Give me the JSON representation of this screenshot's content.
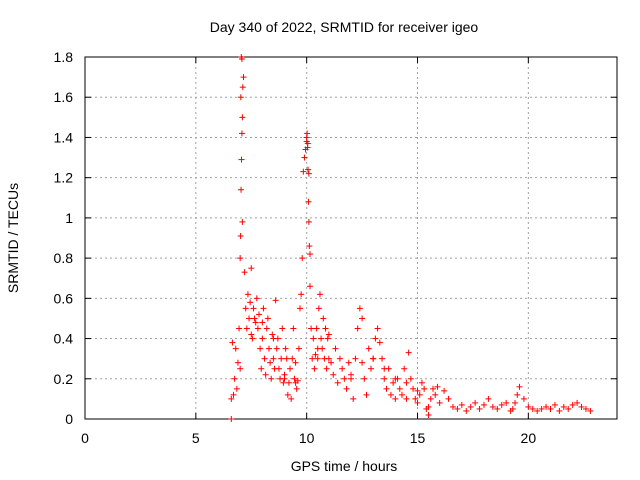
{
  "chart_data": {
    "type": "scatter",
    "title": "Day 340 of 2022, SRMTID for receiver igeo",
    "xlabel": "GPS time / hours",
    "ylabel": "SRMTID / TECUs",
    "xlim": [
      0,
      24
    ],
    "ylim": [
      0,
      1.8
    ],
    "xticks": [
      0,
      5,
      10,
      15,
      20
    ],
    "yticks": [
      0,
      0.2,
      0.4,
      0.6,
      0.8,
      1,
      1.2,
      1.4,
      1.6,
      1.8
    ],
    "xtick_labels": [
      "0",
      "5",
      "10",
      "15",
      "20"
    ],
    "ytick_labels": [
      "0",
      "0.2",
      "0.4",
      "0.6",
      "0.8",
      "1",
      "1.2",
      "1.4",
      "1.6",
      "1.8"
    ],
    "grid": true,
    "marker": "+",
    "marker_color": "#ff0000",
    "series": [
      {
        "name": "SRMTID",
        "x": [
          6.6,
          6.65,
          6.7,
          6.75,
          6.8,
          6.85,
          6.9,
          6.95,
          7.0,
          7.02,
          7.04,
          7.06,
          7.08,
          7.1,
          7.12,
          7.15,
          7.2,
          7.25,
          7.3,
          7.35,
          7.4,
          7.45,
          7.5,
          7.55,
          7.6,
          7.65,
          7.7,
          7.75,
          7.8,
          7.85,
          7.9,
          7.95,
          8.0,
          8.05,
          8.1,
          8.15,
          8.2,
          8.25,
          8.3,
          8.35,
          8.4,
          8.45,
          8.5,
          8.55,
          8.6,
          8.65,
          8.7,
          8.75,
          8.8,
          8.85,
          8.9,
          8.95,
          9.0,
          9.05,
          9.1,
          9.15,
          9.2,
          9.25,
          9.3,
          9.35,
          9.4,
          9.45,
          9.5,
          9.55,
          9.6,
          9.65,
          9.7,
          9.75,
          9.8,
          9.85,
          9.9,
          9.95,
          10.0,
          10.02,
          10.04,
          10.06,
          10.08,
          10.1,
          10.12,
          10.15,
          10.2,
          10.25,
          10.3,
          10.35,
          10.4,
          10.45,
          10.5,
          10.55,
          10.6,
          10.65,
          10.7,
          10.75,
          10.8,
          10.85,
          10.9,
          10.95,
          11.0,
          11.1,
          11.2,
          11.3,
          11.4,
          11.5,
          11.6,
          11.7,
          11.8,
          11.9,
          12.0,
          12.1,
          12.2,
          12.3,
          12.4,
          12.5,
          12.6,
          12.7,
          12.8,
          12.9,
          13.0,
          13.1,
          13.2,
          13.3,
          13.4,
          13.5,
          13.6,
          13.7,
          13.8,
          13.9,
          14.0,
          14.1,
          14.2,
          14.3,
          14.4,
          14.5,
          14.6,
          14.7,
          14.8,
          14.9,
          15.0,
          15.1,
          15.2,
          15.3,
          15.4,
          15.5,
          15.6,
          15.7,
          15.8,
          15.9,
          16.0,
          16.2,
          16.4,
          16.6,
          16.8,
          17.0,
          17.2,
          17.4,
          17.6,
          17.8,
          18.0,
          18.2,
          18.4,
          18.6,
          18.8,
          19.0,
          19.2,
          19.3,
          19.4,
          19.5,
          19.6,
          19.8,
          20.0,
          20.2,
          20.4,
          20.6,
          20.8,
          21.0,
          21.2,
          21.4,
          21.6,
          21.8,
          22.0,
          22.2,
          22.4,
          22.6,
          22.8,
          7.05,
          7.08,
          7.03,
          7.1,
          10.05,
          10.1,
          10.0,
          10.15,
          6.6,
          7.0,
          7.5,
          8.0,
          8.5,
          9.0,
          9.5,
          10.5,
          11.0,
          12.0,
          12.5,
          13.0,
          13.5,
          14.0,
          14.5,
          15.0,
          15.5
        ],
        "y": [
          0.0,
          0.38,
          0.12,
          0.2,
          0.35,
          0.15,
          0.28,
          0.45,
          0.8,
          0.91,
          1.14,
          1.29,
          1.42,
          1.5,
          1.65,
          1.7,
          0.73,
          0.55,
          0.45,
          0.62,
          0.5,
          0.58,
          0.75,
          0.4,
          0.55,
          0.5,
          0.48,
          0.6,
          0.45,
          0.52,
          0.35,
          0.25,
          0.4,
          0.55,
          0.3,
          0.22,
          0.45,
          0.5,
          0.35,
          0.28,
          0.2,
          0.42,
          0.3,
          0.25,
          0.59,
          0.35,
          0.4,
          0.25,
          0.2,
          0.3,
          0.45,
          0.18,
          0.2,
          0.35,
          0.3,
          0.12,
          0.18,
          0.25,
          0.1,
          0.3,
          0.45,
          0.2,
          0.28,
          0.15,
          0.19,
          0.35,
          0.55,
          0.62,
          0.8,
          1.23,
          1.3,
          1.34,
          1.38,
          1.42,
          1.35,
          1.24,
          1.08,
          0.98,
          0.86,
          0.66,
          0.45,
          0.3,
          0.4,
          0.25,
          0.32,
          0.45,
          0.3,
          0.55,
          0.62,
          0.4,
          0.35,
          0.5,
          0.3,
          0.45,
          0.25,
          0.4,
          0.3,
          0.28,
          0.22,
          0.35,
          0.18,
          0.3,
          0.25,
          0.2,
          0.15,
          0.28,
          0.22,
          0.1,
          0.3,
          0.45,
          0.55,
          0.28,
          0.2,
          0.12,
          0.35,
          0.25,
          0.3,
          0.4,
          0.45,
          0.38,
          0.3,
          0.2,
          0.15,
          0.25,
          0.12,
          0.18,
          0.1,
          0.2,
          0.15,
          0.12,
          0.25,
          0.18,
          0.33,
          0.2,
          0.15,
          0.1,
          0.08,
          0.12,
          0.18,
          0.15,
          0.05,
          0.02,
          0.1,
          0.15,
          0.12,
          0.16,
          0.08,
          0.14,
          0.1,
          0.06,
          0.05,
          0.07,
          0.04,
          0.06,
          0.08,
          0.05,
          0.07,
          0.1,
          0.06,
          0.05,
          0.07,
          0.08,
          0.04,
          0.05,
          0.08,
          0.12,
          0.16,
          0.1,
          0.06,
          0.05,
          0.04,
          0.05,
          0.06,
          0.05,
          0.07,
          0.04,
          0.06,
          0.05,
          0.07,
          0.08,
          0.06,
          0.05,
          0.04,
          1.8,
          1.79,
          1.6,
          0.98,
          1.37,
          1.22,
          1.4,
          0.82,
          0.1,
          0.25,
          0.42,
          0.48,
          0.4,
          0.22,
          0.18,
          0.35,
          0.42,
          0.2,
          0.5,
          0.3,
          0.25,
          0.2,
          0.1,
          0.14,
          0.06
        ]
      }
    ]
  }
}
